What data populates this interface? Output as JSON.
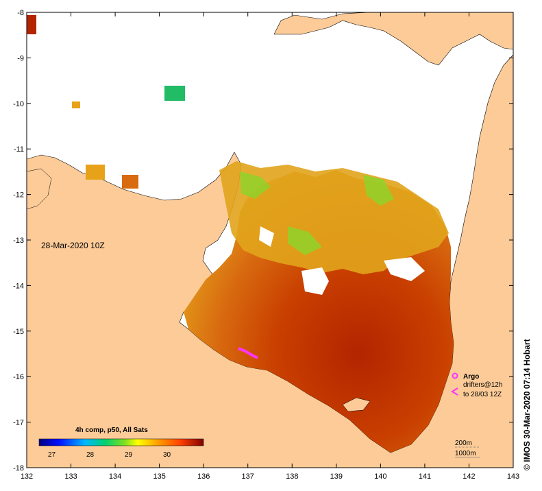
{
  "map": {
    "date_label": "28-Mar-2020 10Z",
    "credit": "© IMOS 30-Mar-2020 07:14 Hobart",
    "lon_ticks": [
      "132",
      "133",
      "134",
      "135",
      "136",
      "137",
      "138",
      "139",
      "140",
      "141",
      "142",
      "143"
    ],
    "lat_ticks": [
      "-8",
      "-9",
      "-10",
      "-11",
      "-12",
      "-13",
      "-14",
      "-15",
      "-16",
      "-17",
      "-18"
    ],
    "colorbar": {
      "title": "4h comp, p50, All Sats",
      "ticks": [
        "27",
        "28",
        "29",
        "30"
      ]
    },
    "legend": {
      "argo": "Argo",
      "drifters_line1": "drifters@12h",
      "drifters_line2": "to 28/03 12Z"
    },
    "depth": {
      "d200": "200m",
      "d1000": "1000m"
    },
    "colors": {
      "land": "#fccb98",
      "sst_hot": "#b32400",
      "sst_warm": "#d45e0a",
      "sst_mid": "#e8a21a",
      "sst_cool": "#7fd02a",
      "argo": "#ff33ff"
    }
  }
}
